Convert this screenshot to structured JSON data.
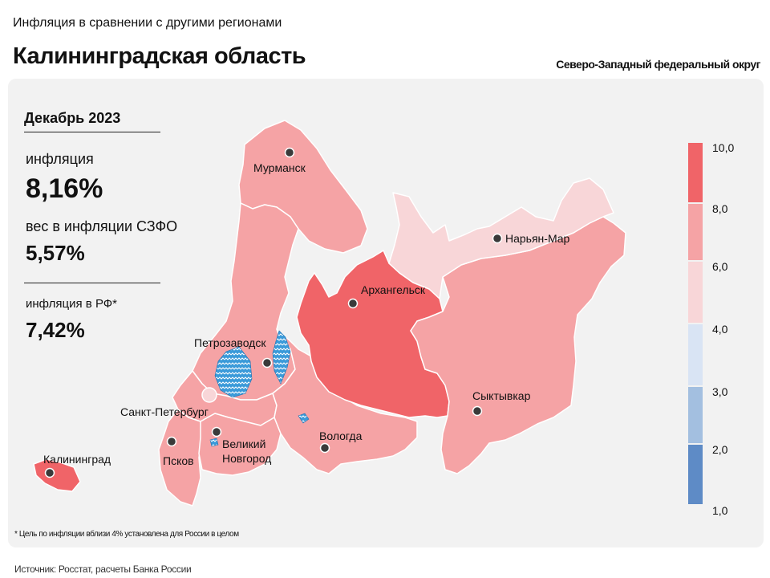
{
  "header": {
    "top_label": "Инфляция в сравнении с другими регионами",
    "region_title": "Калининградская область",
    "district": "Северо-Западный федеральный округ"
  },
  "stats": {
    "period": "Декабрь 2023",
    "inflation_label": "инфляция",
    "inflation_value": "8,16%",
    "weight_label": "вес в инфляции  СЗФО",
    "weight_value": "5,57%",
    "rf_label": "инфляция  в РФ*",
    "rf_value": "7,42%"
  },
  "cities": {
    "murmansk": "Мурманск",
    "naryan_mar": "Нарьян-Мар",
    "arkhangelsk": "Архангельск",
    "petrozavodsk": "Петрозаводск",
    "spb": "Санкт-Петербург",
    "syktyvkar": "Сыктывкар",
    "vologda": "Вологда",
    "pskov": "Псков",
    "novgorod_1": "Великий",
    "novgorod_2": "Новгород",
    "kaliningrad": "Калининград"
  },
  "legend": {
    "labels": [
      "10,0",
      "8,0",
      "6,0",
      "4,0",
      "3,0",
      "2,0",
      "1,0"
    ],
    "colors": [
      "#f06468",
      "#f5a3a5",
      "#f8d6d8",
      "#d9e4f4",
      "#a3bfe0",
      "#5e8bc6"
    ]
  },
  "colors": {
    "high": "#f06468",
    "mid": "#f5a3a5",
    "low": "#f8d6d8",
    "water": "#3a9ad9"
  },
  "footnote": "* Цель по инфляции вблизи 4% установлена для России в целом",
  "source": "Источник: Росстат, расчеты Банка России"
}
